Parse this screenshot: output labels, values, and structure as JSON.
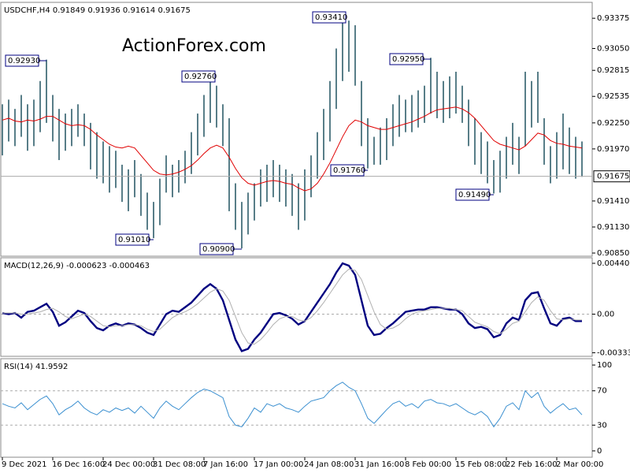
{
  "chart_data": [
    {
      "type": "ohlc",
      "title": "USDCHF,H4  0.91849 0.91936 0.91614 0.91675",
      "watermark": "ActionForex.com",
      "color": "#2e5d6a",
      "high": [
        0.9245,
        0.925,
        0.924,
        0.9255,
        0.9245,
        0.925,
        0.927,
        0.9293,
        0.9255,
        0.924,
        0.9235,
        0.924,
        0.9245,
        0.9235,
        0.9225,
        0.9215,
        0.9205,
        0.92,
        0.9195,
        0.918,
        0.9175,
        0.9185,
        0.917,
        0.915,
        0.914,
        0.9165,
        0.919,
        0.918,
        0.9185,
        0.9195,
        0.9215,
        0.9235,
        0.9255,
        0.9276,
        0.9265,
        0.9245,
        0.923,
        0.916,
        0.914,
        0.915,
        0.916,
        0.9175,
        0.918,
        0.9185,
        0.918,
        0.9175,
        0.917,
        0.916,
        0.9175,
        0.919,
        0.9215,
        0.924,
        0.927,
        0.9305,
        0.9341,
        0.9335,
        0.933,
        0.927,
        0.923,
        0.921,
        0.922,
        0.923,
        0.9245,
        0.9255,
        0.925,
        0.9255,
        0.926,
        0.9265,
        0.9295,
        0.928,
        0.927,
        0.9275,
        0.928,
        0.9265,
        0.925,
        0.923,
        0.9215,
        0.9205,
        0.9185,
        0.9195,
        0.921,
        0.9225,
        0.921,
        0.928,
        0.927,
        0.928,
        0.923,
        0.92,
        0.9215,
        0.9235,
        0.922,
        0.921,
        0.9205
      ],
      "low": [
        0.919,
        0.9205,
        0.92,
        0.921,
        0.9195,
        0.92,
        0.9215,
        0.9225,
        0.9205,
        0.9185,
        0.9195,
        0.92,
        0.921,
        0.92,
        0.9175,
        0.9165,
        0.916,
        0.915,
        0.9155,
        0.914,
        0.913,
        0.9145,
        0.9125,
        0.911,
        0.9101,
        0.9115,
        0.915,
        0.9145,
        0.915,
        0.916,
        0.917,
        0.919,
        0.921,
        0.9225,
        0.922,
        0.92,
        0.913,
        0.911,
        0.909,
        0.9105,
        0.912,
        0.9135,
        0.914,
        0.9145,
        0.914,
        0.9135,
        0.9125,
        0.911,
        0.912,
        0.9145,
        0.9165,
        0.9185,
        0.9205,
        0.924,
        0.927,
        0.928,
        0.9265,
        0.92,
        0.9176,
        0.918,
        0.918,
        0.9185,
        0.92,
        0.921,
        0.9215,
        0.9215,
        0.922,
        0.9225,
        0.9235,
        0.923,
        0.9225,
        0.923,
        0.9235,
        0.9225,
        0.92,
        0.918,
        0.917,
        0.916,
        0.9149,
        0.915,
        0.9165,
        0.918,
        0.917,
        0.92,
        0.922,
        0.9225,
        0.918,
        0.916,
        0.9165,
        0.9175,
        0.917,
        0.9165,
        0.9167
      ],
      "series": [
        {
          "color": "#e00000",
          "values": [
            0.9228,
            0.923,
            0.9227,
            0.9226,
            0.9228,
            0.9227,
            0.9229,
            0.9232,
            0.9232,
            0.9228,
            0.9224,
            0.9222,
            0.9223,
            0.9222,
            0.9218,
            0.9212,
            0.9207,
            0.9202,
            0.9199,
            0.9198,
            0.92,
            0.9198,
            0.919,
            0.9182,
            0.9174,
            0.917,
            0.9169,
            0.917,
            0.9172,
            0.9175,
            0.9179,
            0.9185,
            0.9192,
            0.9198,
            0.9201,
            0.9198,
            0.9188,
            0.9176,
            0.9166,
            0.916,
            0.9158,
            0.916,
            0.9162,
            0.9163,
            0.9162,
            0.916,
            0.9159,
            0.9155,
            0.9152,
            0.9154,
            0.916,
            0.917,
            0.9182,
            0.9196,
            0.921,
            0.9222,
            0.9228,
            0.9226,
            0.9222,
            0.922,
            0.9218,
            0.9218,
            0.922,
            0.9222,
            0.9224,
            0.9226,
            0.9229,
            0.9232,
            0.9236,
            0.9239,
            0.924,
            0.9241,
            0.9242,
            0.924,
            0.9236,
            0.923,
            0.9222,
            0.9214,
            0.9206,
            0.9202,
            0.92,
            0.9198,
            0.9196,
            0.92,
            0.9207,
            0.9214,
            0.9212,
            0.9206,
            0.9203,
            0.9202,
            0.92,
            0.9199,
            0.9198
          ]
        }
      ],
      "last_price": 0.91675,
      "annotations": [
        "0.92930",
        "0.92760",
        "0.93410",
        "0.92950",
        "0.91010",
        "0.90900",
        "0.91760",
        "0.91490"
      ],
      "ylim": [
        0.90816,
        0.93546
      ],
      "yticks": [
        0.93375,
        {
          "value": 0.9305,
          "label": "0.93050"
        },
        0.92815,
        0.92535,
        {
          "value": 0.9225,
          "label": "0.92250"
        },
        {
          "value": 0.9197,
          "label": "0.91970"
        },
        {
          "value": 0.9141,
          "label": "0.91410"
        },
        {
          "value": 0.9113,
          "label": "0.91130"
        },
        {
          "value": 0.9085,
          "label": "0.90850"
        }
      ]
    },
    {
      "type": "line",
      "title": "MACD(12,26,9) -0.000623 -0.000463",
      "series": [
        {
          "color": "#000080",
          "values": [
            0.0001,
            0.0,
            0.0001,
            -0.0003,
            0.0002,
            0.0003,
            0.0006,
            0.0009,
            0.0002,
            -0.001,
            -0.0007,
            -0.0002,
            0.0003,
            0.0001,
            -0.0006,
            -0.0012,
            -0.0014,
            -0.001,
            -0.0008,
            -0.001,
            -0.0008,
            -0.0009,
            -0.0012,
            -0.0016,
            -0.0018,
            -0.0009,
            0.0,
            0.0003,
            0.0002,
            0.0006,
            0.001,
            0.0016,
            0.0022,
            0.0026,
            0.0022,
            0.0012,
            -0.0005,
            -0.0022,
            -0.0032,
            -0.003,
            -0.0022,
            -0.0016,
            -0.0008,
            0.0,
            0.0001,
            -0.0001,
            -0.0004,
            -0.0009,
            -0.0006,
            0.0002,
            0.001,
            0.0018,
            0.0026,
            0.0036,
            0.0044,
            0.0042,
            0.0034,
            0.0012,
            -0.001,
            -0.0018,
            -0.0017,
            -0.0012,
            -0.0008,
            -0.0003,
            0.0002,
            0.0003,
            0.0004,
            0.0004,
            0.0006,
            0.0006,
            0.0005,
            0.0004,
            0.0004,
            0.0,
            -0.0008,
            -0.0012,
            -0.0011,
            -0.0013,
            -0.002,
            -0.0018,
            -0.0008,
            -0.0003,
            -0.0005,
            0.0012,
            0.0018,
            0.0019,
            0.0005,
            -0.0008,
            -0.001,
            -0.0004,
            -0.0003,
            -0.0006,
            -0.0006
          ]
        },
        {
          "color": "#b0b0b0",
          "values": [
            0.0001,
            0.0001,
            0.0001,
            0.0,
            0.0,
            0.0001,
            0.0002,
            0.0004,
            0.0005,
            0.0002,
            -0.0002,
            -0.0004,
            -0.0002,
            0.0,
            -0.0002,
            -0.0006,
            -0.001,
            -0.0011,
            -0.001,
            -0.001,
            -0.0009,
            -0.0009,
            -0.001,
            -0.0013,
            -0.0015,
            -0.0013,
            -0.0008,
            -0.0003,
            0.0,
            0.0002,
            0.0005,
            0.0009,
            0.0014,
            0.0019,
            0.0022,
            0.002,
            0.0012,
            -0.0002,
            -0.0016,
            -0.0025,
            -0.0026,
            -0.0022,
            -0.0016,
            -0.0009,
            -0.0004,
            -0.0002,
            -0.0002,
            -0.0005,
            -0.0006,
            -0.0003,
            0.0003,
            0.001,
            0.0018,
            0.0026,
            0.0034,
            0.0039,
            0.0038,
            0.003,
            0.0016,
            0.0002,
            -0.0009,
            -0.0013,
            -0.0012,
            -0.0009,
            -0.0004,
            0.0,
            0.0002,
            0.0003,
            0.0004,
            0.0005,
            0.0005,
            0.0005,
            0.0004,
            0.0003,
            -0.0002,
            -0.0007,
            -0.0009,
            -0.0011,
            -0.0015,
            -0.0017,
            -0.0013,
            -0.0008,
            -0.0006,
            0.0002,
            0.001,
            0.0015,
            0.0012,
            0.0003,
            -0.0004,
            -0.0005,
            -0.0004,
            -0.0005,
            -0.0005
          ]
        }
      ],
      "levels": [
        0
      ],
      "ylim": [
        -0.00365,
        0.00488
      ],
      "yticks": [
        0.004403,
        {
          "value": 0,
          "label": "0.00"
        },
        -0.003338
      ]
    },
    {
      "type": "line",
      "title": "RSI(14) 41.9592",
      "categories": [
        "9 Dec 2021",
        null,
        null,
        null,
        null,
        null,
        null,
        null,
        "16 Dec 16:00",
        null,
        null,
        null,
        null,
        null,
        null,
        null,
        "24 Dec 00:00",
        null,
        null,
        null,
        null,
        null,
        null,
        null,
        "31 Dec 08:00",
        null,
        null,
        null,
        null,
        null,
        null,
        null,
        "7 Jan 16:00",
        null,
        null,
        null,
        null,
        null,
        null,
        null,
        "17 Jan 00:00",
        null,
        null,
        null,
        null,
        null,
        null,
        null,
        "24 Jan 08:00",
        null,
        null,
        null,
        null,
        null,
        null,
        null,
        "31 Jan 16:00",
        null,
        null,
        null,
        null,
        null,
        null,
        null,
        "8 Feb 00:00",
        null,
        null,
        null,
        null,
        null,
        null,
        null,
        "15 Feb 08:00",
        null,
        null,
        null,
        null,
        null,
        null,
        null,
        "22 Feb 16:00",
        null,
        null,
        null,
        null,
        null,
        null,
        null,
        "2 Mar 00:00",
        null,
        null,
        null,
        null
      ],
      "series": [
        {
          "color": "#3a8fd0",
          "values": [
            55,
            52,
            50,
            56,
            48,
            54,
            60,
            64,
            55,
            42,
            48,
            52,
            58,
            50,
            45,
            42,
            48,
            45,
            50,
            47,
            50,
            44,
            52,
            45,
            38,
            50,
            58,
            52,
            48,
            55,
            62,
            68,
            72,
            70,
            66,
            62,
            40,
            30,
            28,
            38,
            50,
            45,
            55,
            52,
            55,
            50,
            48,
            45,
            52,
            58,
            60,
            62,
            70,
            76,
            80,
            74,
            70,
            55,
            38,
            32,
            40,
            48,
            55,
            58,
            52,
            55,
            50,
            58,
            60,
            56,
            55,
            52,
            55,
            50,
            45,
            42,
            46,
            40,
            28,
            38,
            52,
            56,
            48,
            70,
            62,
            68,
            52,
            44,
            50,
            55,
            48,
            50,
            42
          ]
        }
      ],
      "levels": [
        70,
        30
      ],
      "ylim": [
        -7.4,
        107.4
      ],
      "yticks": [
        100,
        70,
        30,
        0
      ]
    }
  ]
}
